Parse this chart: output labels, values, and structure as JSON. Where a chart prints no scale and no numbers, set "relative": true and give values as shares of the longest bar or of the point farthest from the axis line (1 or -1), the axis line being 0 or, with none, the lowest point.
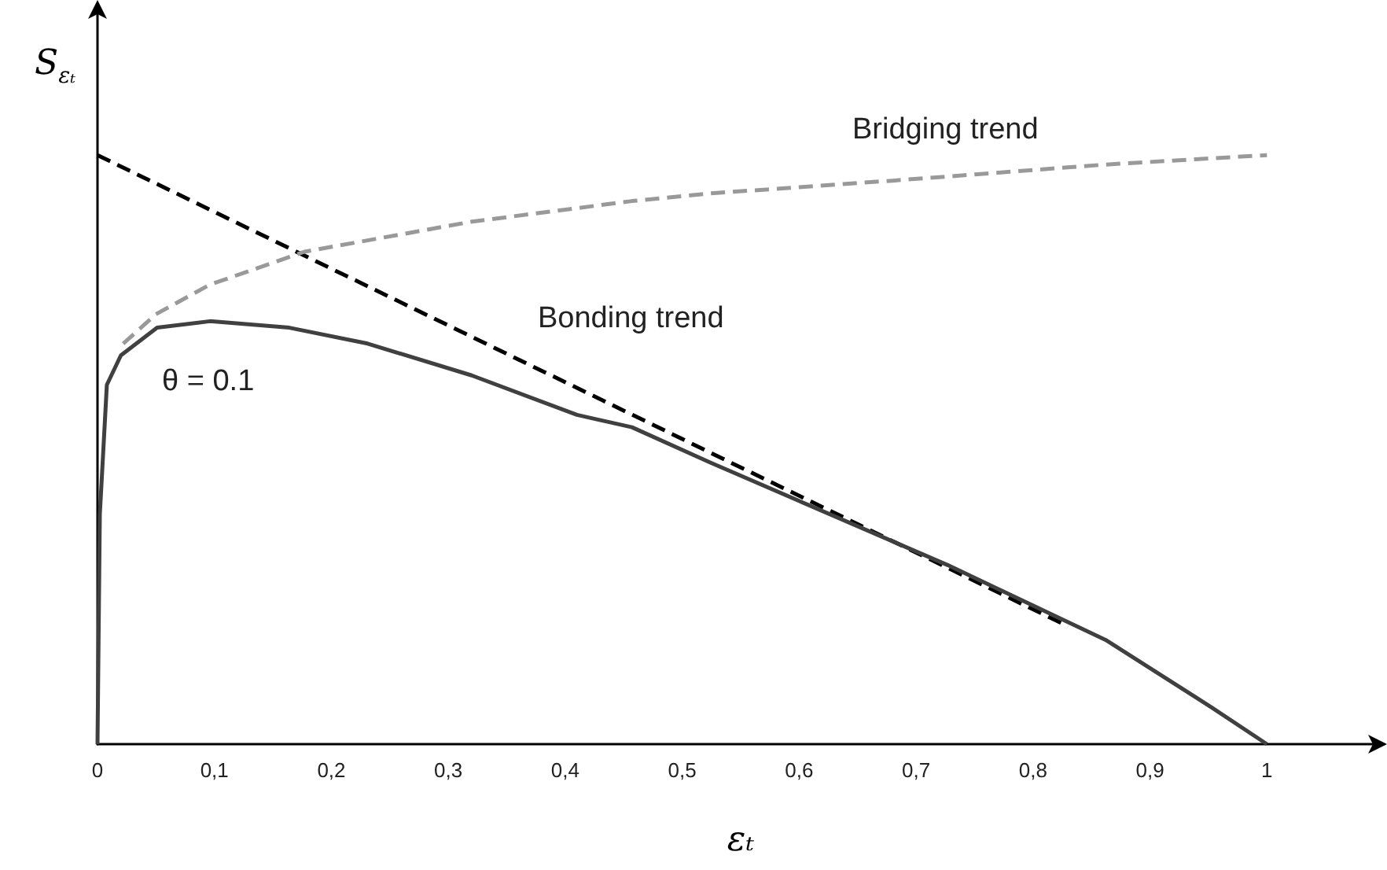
{
  "chart_data": {
    "type": "line",
    "relative": true,
    "xlabel": "εₜ",
    "ylabel": "S$_{εₜ}$",
    "xlim": [
      0,
      1.1
    ],
    "xticks": [
      0,
      {
        "value": 0.1,
        "label": "0,1"
      },
      {
        "value": 0.2,
        "label": "0,2"
      },
      {
        "value": 0.3,
        "label": "0,3"
      },
      {
        "value": 0.4,
        "label": "0,4"
      },
      {
        "value": 0.5,
        "label": "0,5"
      },
      {
        "value": 0.6,
        "label": "0,6"
      },
      {
        "value": 0.7,
        "label": "0,7"
      },
      {
        "value": 0.8,
        "label": "0,8"
      },
      {
        "value": 0.9,
        "label": "0,9"
      },
      1
    ],
    "tick_labels": "x",
    "grid": false,
    "marker": "none",
    "series": [
      {
        "color": "#000000",
        "line_style": "dashed",
        "x": [
          0,
          0.83
        ],
        "values": [
          1.0,
          0.2
        ]
      },
      {
        "color": "#999999",
        "line_style": "dashed",
        "x": [
          0.022,
          0.05,
          0.096,
          0.177,
          0.32,
          0.457,
          0.524,
          0.682,
          0.862,
          1.0
        ],
        "values": [
          0.68,
          0.73,
          0.78,
          0.836,
          0.887,
          0.922,
          0.935,
          0.957,
          0.984,
          1.0
        ]
      },
      {
        "color": "#404040",
        "line_style": "solid",
        "x": [
          0,
          0.002,
          0.008,
          0.02,
          0.051,
          0.096,
          0.164,
          0.231,
          0.32,
          0.41,
          0.457,
          0.524,
          0.727,
          0.862,
          0.953,
          1.0
        ],
        "values": [
          0,
          0.39,
          0.61,
          0.66,
          0.707,
          0.718,
          0.707,
          0.68,
          0.626,
          0.559,
          0.538,
          0.478,
          0.304,
          0.177,
          0.062,
          0
        ]
      }
    ],
    "annotations": [
      "Bridging trend",
      "Bonding trend",
      "θ = 0.1"
    ]
  }
}
